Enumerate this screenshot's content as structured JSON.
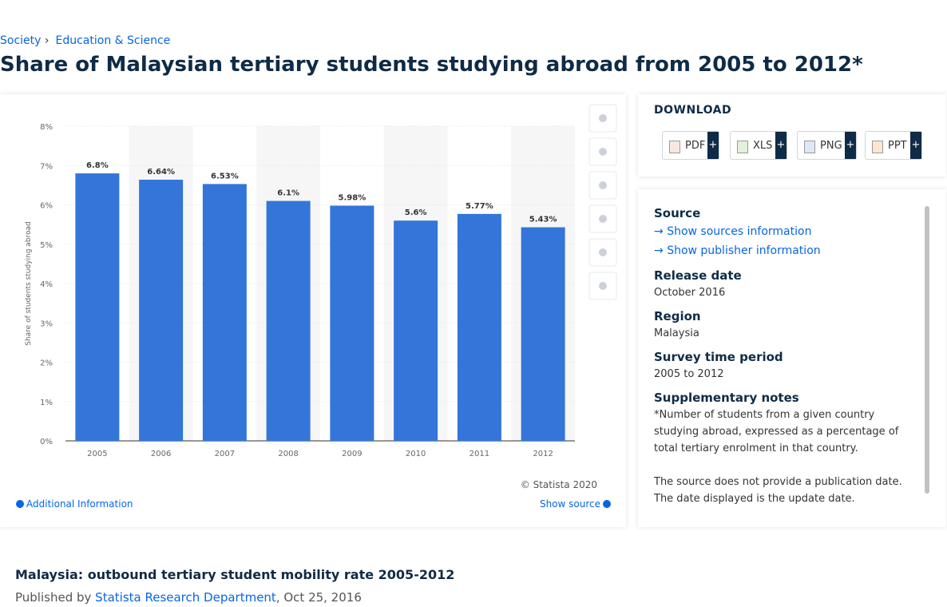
{
  "breadcrumb": [
    "Society",
    "Education & Science"
  ],
  "title": "Share of Malaysian tertiary students studying abroad from 2005 to 2012*",
  "chart_data": {
    "type": "bar",
    "y_label": "Share of students studying abroad",
    "categories": [
      "2005",
      "2006",
      "2007",
      "2008",
      "2009",
      "2010",
      "2011",
      "2012"
    ],
    "values": [
      6.8,
      6.64,
      6.53,
      6.1,
      5.98,
      5.6,
      5.77,
      5.43
    ],
    "value_labels": [
      "6.8%",
      "6.64%",
      "6.53%",
      "6.1%",
      "5.98%",
      "5.6%",
      "5.77%",
      "5.43%"
    ],
    "color": "#3375d9",
    "ylim": [
      0,
      8
    ],
    "yticks": [
      {
        "value": 0,
        "label": "0%"
      },
      {
        "value": 1,
        "label": "1%"
      },
      {
        "value": 2,
        "label": "2%"
      },
      {
        "value": 3,
        "label": "3%"
      },
      {
        "value": 4,
        "label": "4%"
      },
      {
        "value": 5,
        "label": "5%"
      },
      {
        "value": 6,
        "label": "6%"
      },
      {
        "value": 7,
        "label": "7%"
      },
      {
        "value": 8,
        "label": "8%"
      }
    ],
    "grid": true
  },
  "chart_footer": {
    "copyright": "© Statista 2020",
    "additional_info": "Additional Information",
    "show_source": "Show source"
  },
  "download": {
    "title": "DOWNLOAD",
    "formats": [
      "PDF",
      "XLS",
      "PNG",
      "PPT"
    ]
  },
  "details": {
    "source_label": "Source",
    "show_sources": "Show sources information",
    "show_publisher": "Show publisher information",
    "items": [
      {
        "label": "Release date",
        "value": "October 2016"
      },
      {
        "label": "Region",
        "value": "Malaysia"
      },
      {
        "label": "Survey time period",
        "value": "2005 to 2012"
      }
    ],
    "notes_label": "Supplementary notes",
    "notes": [
      "*Number of students from a given country studying abroad, expressed as a percentage of total tertiary enrolment in that country.",
      "The source does not provide a publication date. The date displayed is the update date."
    ]
  },
  "publication": {
    "title": "Malaysia: outbound tertiary student mobility rate 2005-2012",
    "published_by": "Published by",
    "author": "Statista Research Department",
    "date": "Oct 25, 2016"
  }
}
